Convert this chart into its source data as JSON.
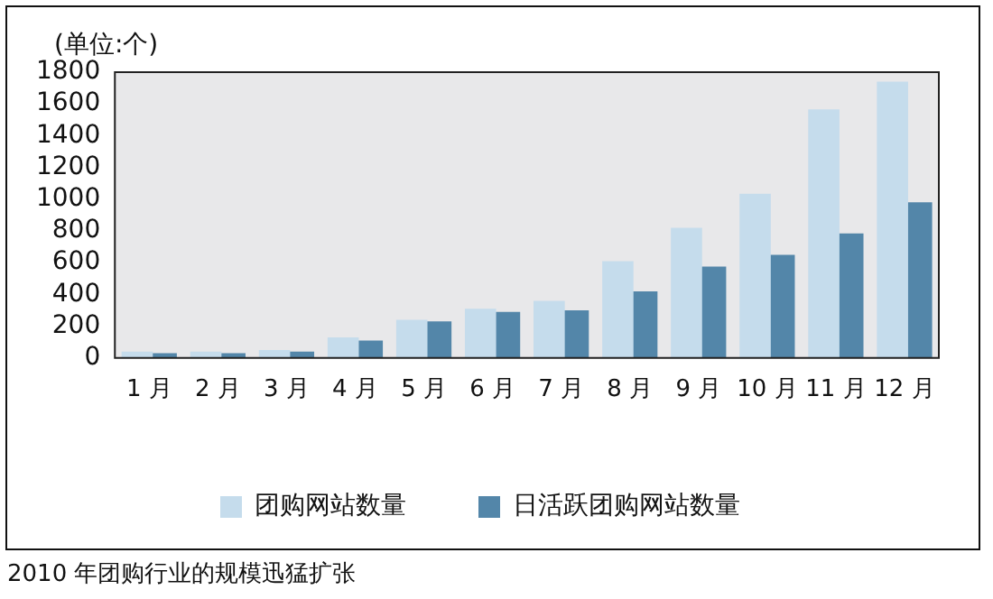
{
  "chart_data": {
    "type": "bar",
    "ylabel": "(单位:个)",
    "categories": [
      "1 月",
      "2 月",
      "3 月",
      "4 月",
      "5 月",
      "6 月",
      "7 月",
      "8 月",
      "9 月",
      "10 月",
      "11 月",
      "12 月"
    ],
    "series": [
      {
        "name": "团购网站数量",
        "color": "#c5dcec",
        "values": [
          40,
          40,
          50,
          130,
          240,
          310,
          360,
          610,
          820,
          1035,
          1565,
          1740
        ]
      },
      {
        "name": "日活跃团购网站数量",
        "color": "#5386a9",
        "values": [
          30,
          30,
          40,
          110,
          230,
          290,
          300,
          420,
          575,
          650,
          785,
          980
        ]
      }
    ],
    "ylim": [
      0,
      1800
    ],
    "yticks": [
      0,
      200,
      400,
      600,
      800,
      1000,
      1200,
      1400,
      1600,
      1800
    ],
    "grid": false,
    "legend": "bottom",
    "annotations": [
      "2010 年团购行业的规模迅猛扩张"
    ]
  }
}
